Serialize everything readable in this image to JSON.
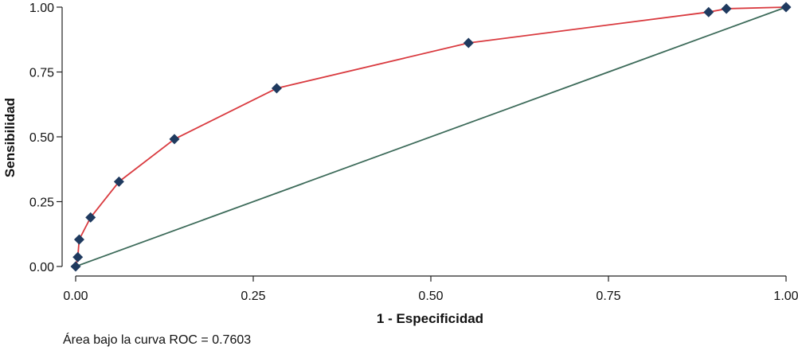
{
  "chart_data": {
    "type": "line",
    "title": "",
    "xlabel": "1 - Especificidad",
    "ylabel": "Sensibilidad",
    "xlim": [
      0,
      1
    ],
    "ylim": [
      0,
      1
    ],
    "x_ticks": [
      "0.00",
      "0.25",
      "0.50",
      "0.75",
      "1.00"
    ],
    "y_ticks": [
      "0.00",
      "0.25",
      "0.50",
      "0.75",
      "1.00"
    ],
    "x_tick_values": [
      0,
      0.25,
      0.5,
      0.75,
      1
    ],
    "y_tick_values": [
      0,
      0.25,
      0.5,
      0.75,
      1
    ],
    "grid": false,
    "legend": "none",
    "series": [
      {
        "color": "#d93a3f",
        "marker": "diamond",
        "marker_color": "#1f3a5f",
        "x": [
          0.0,
          0.003,
          0.005,
          0.021,
          0.061,
          0.139,
          0.283,
          0.553,
          0.891,
          0.916,
          1.0
        ],
        "y": [
          0.0,
          0.036,
          0.104,
          0.189,
          0.327,
          0.491,
          0.687,
          0.862,
          0.981,
          0.994,
          1.0
        ]
      },
      {
        "color": "#3d6b5a",
        "marker": "none",
        "x": [
          0,
          1
        ],
        "y": [
          0,
          1
        ]
      }
    ],
    "annotations": [
      "Área bajo la curva ROC = 0.7603"
    ]
  }
}
